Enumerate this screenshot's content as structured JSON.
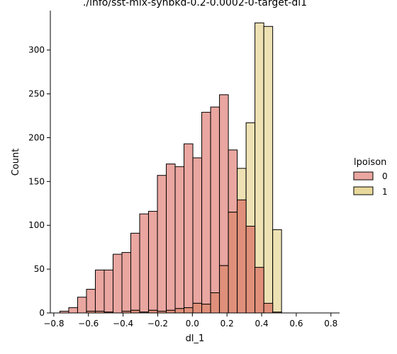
{
  "chart_data": {
    "type": "bar",
    "title": "./info/sst-mix-synbkd-0.2-0.0002-0-target-dl1",
    "xlabel": "dl_1",
    "ylabel": "Count",
    "xlim": [
      -0.82,
      0.85
    ],
    "ylim": [
      0,
      345
    ],
    "x_ticks": [
      -0.8,
      -0.6,
      -0.4,
      -0.2,
      0.0,
      0.2,
      0.4,
      0.6,
      0.8
    ],
    "x_tick_labels": [
      "−0.8",
      "−0.6",
      "−0.4",
      "−0.2",
      "0.0",
      "0.2",
      "0.4",
      "0.6",
      "0.8"
    ],
    "y_ticks": [
      0,
      50,
      100,
      150,
      200,
      250,
      300
    ],
    "y_tick_labels": [
      "0",
      "50",
      "100",
      "150",
      "200",
      "250",
      "300"
    ],
    "bin_start": -0.765,
    "bin_width": 0.0512,
    "legend": {
      "title": "lpoison",
      "placement": "center-right",
      "entries": [
        "0",
        "1"
      ]
    },
    "series": [
      {
        "name": "0",
        "color": "#eaa6a0",
        "values": [
          2,
          6,
          18,
          27,
          49,
          49,
          67,
          69,
          91,
          113,
          116,
          157,
          170,
          167,
          193,
          177,
          229,
          235,
          249,
          186,
          129,
          99,
          52,
          11,
          1
        ]
      },
      {
        "name": "1",
        "color": "#e8d89b",
        "values": [
          0,
          0,
          0,
          2,
          2,
          1,
          0,
          2,
          3,
          1,
          3,
          2,
          3,
          5,
          6,
          11,
          10,
          23,
          54,
          115,
          165,
          217,
          331,
          327,
          95
        ]
      }
    ],
    "grid": false,
    "spines": "left-bottom"
  }
}
